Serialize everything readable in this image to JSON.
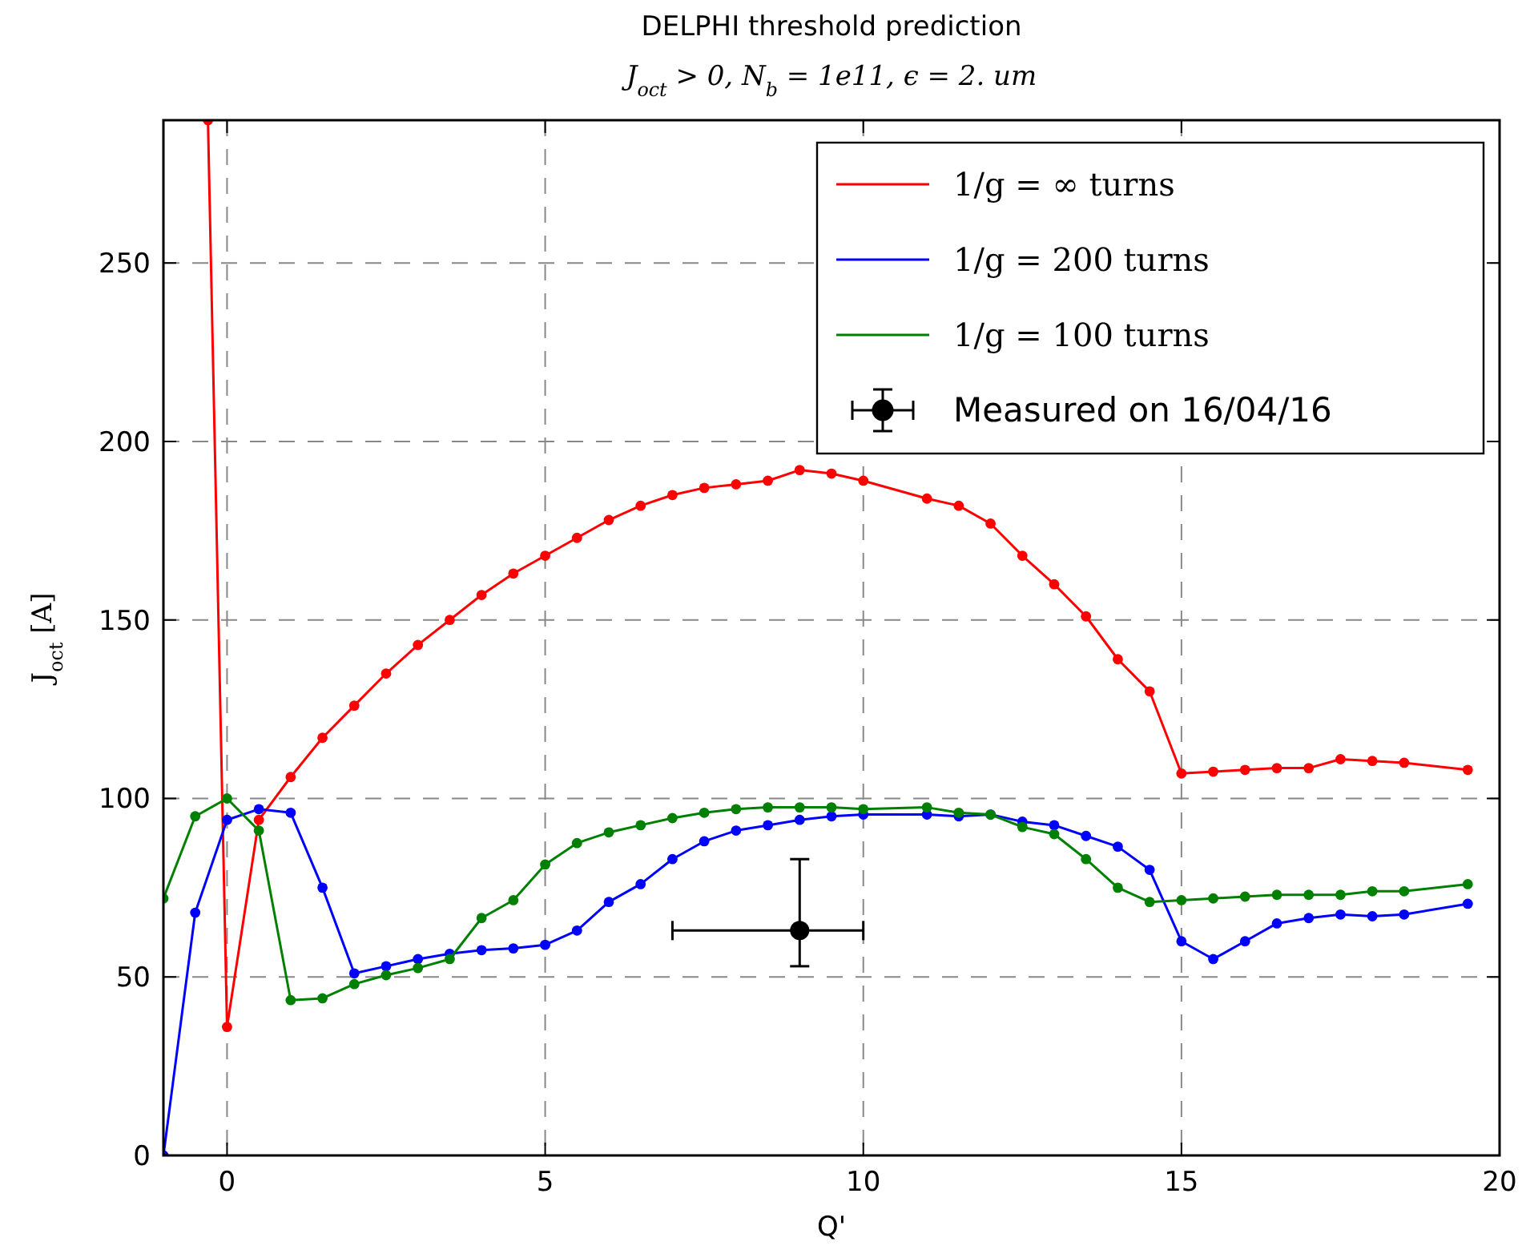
{
  "chart_data": {
    "type": "line",
    "title": "DELPHI threshold prediction",
    "subtitle": "J$_{oct}$ > 0,  N$_{b}$ = 1e11, ϵ = 2. um",
    "xlabel": "Q'",
    "ylabel": "J$_{oct}$ [A]",
    "xlim": [
      -1,
      20
    ],
    "xticks": [
      0,
      5,
      10,
      15,
      20
    ],
    "ylim": [
      0,
      290
    ],
    "yticks": [
      0,
      50,
      100,
      150,
      200,
      250
    ],
    "grid": true,
    "legend": "top right",
    "marker": "circle",
    "line_style": "solid",
    "series": [
      {
        "name": "1/g = ∞ turns",
        "color": "#ff0000",
        "x": [
          -0.3,
          0,
          0.5,
          1,
          1.5,
          2,
          2.5,
          3,
          3.5,
          4,
          4.5,
          5,
          5.5,
          6,
          6.5,
          7,
          7.5,
          8,
          8.5,
          9,
          9.5,
          10,
          11,
          11.5,
          12,
          12.5,
          13,
          13.5,
          14,
          14.5,
          15,
          15.5,
          16,
          16.5,
          17,
          17.5,
          18,
          18.5,
          19.5
        ],
        "values": [
          290,
          36,
          94,
          106,
          117,
          126,
          135,
          143,
          150,
          157,
          163,
          168,
          173,
          178,
          182,
          185,
          187,
          188,
          189,
          192,
          191,
          189,
          184,
          182,
          177,
          168,
          160,
          151,
          139,
          130,
          107,
          107.5,
          108,
          108.5,
          108.5,
          111,
          110.5,
          110,
          108
        ]
      },
      {
        "name": "1/g = 200 turns",
        "color": "#0000ff",
        "x": [
          -1,
          -0.5,
          0,
          0.5,
          1,
          1.5,
          2,
          2.5,
          3,
          3.5,
          4,
          4.5,
          5,
          5.5,
          6,
          6.5,
          7,
          7.5,
          8,
          8.5,
          9,
          9.5,
          10,
          11,
          11.5,
          12,
          12.5,
          13,
          13.5,
          14,
          14.5,
          15,
          15.5,
          16,
          16.5,
          17,
          17.5,
          18,
          18.5,
          19.5
        ],
        "values": [
          0,
          68,
          94,
          97,
          96,
          75,
          51,
          53,
          55,
          56.5,
          57.5,
          58,
          59,
          63,
          71,
          76,
          83,
          88,
          91,
          92.5,
          94,
          95,
          95.5,
          95.5,
          95,
          95.5,
          93.5,
          92.5,
          89.5,
          86.5,
          80,
          60,
          55,
          60,
          65,
          66.5,
          67.5,
          67,
          67.5,
          70.5
        ]
      },
      {
        "name": "1/g = 100 turns",
        "color": "#008000",
        "x": [
          -1,
          -0.5,
          0,
          0.5,
          1,
          1.5,
          2,
          2.5,
          3,
          3.5,
          4,
          4.5,
          5,
          5.5,
          6,
          6.5,
          7,
          7.5,
          8,
          8.5,
          9,
          9.5,
          10,
          11,
          11.5,
          12,
          12.5,
          13,
          13.5,
          14,
          14.5,
          15,
          15.5,
          16,
          16.5,
          17,
          17.5,
          18,
          18.5,
          19.5
        ],
        "values": [
          72,
          95,
          100,
          91,
          43.5,
          44,
          48,
          50.5,
          52.5,
          55,
          66.5,
          71.5,
          81.5,
          87.5,
          90.5,
          92.5,
          94.5,
          96,
          97,
          97.5,
          97.5,
          97.5,
          97,
          97.5,
          96,
          95.5,
          92,
          90,
          83,
          75,
          71,
          71.5,
          72,
          72.5,
          73,
          73,
          73,
          74,
          74,
          76
        ]
      },
      {
        "name": "Measured on 16/04/16",
        "type": "scatter",
        "color": "#000000",
        "x": [
          9
        ],
        "values": [
          63
        ],
        "errors": [
          [
            53,
            83
          ]
        ],
        "xerrors": [
          [
            7,
            10
          ]
        ]
      }
    ]
  }
}
